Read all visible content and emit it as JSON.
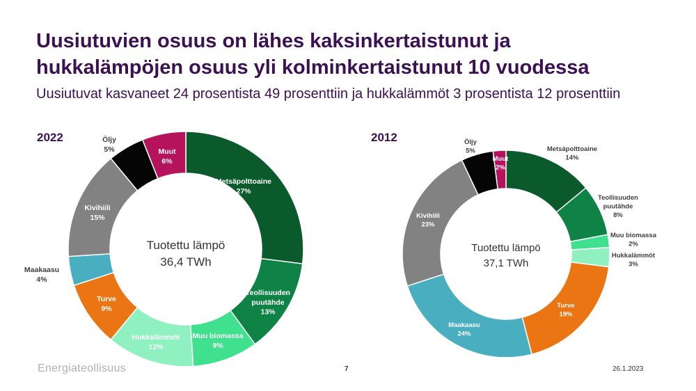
{
  "header": {
    "title_line1": "Uusiutuvien osuus on lähes kaksinkertaistunut ja",
    "title_line2": "hukkalämpöjen osuus yli kolminkertaistunut 10 vuodessa",
    "subtitle": "Uusiutuvat kasvaneet 24 prosentista 49 prosenttiin ja hukkalämmöt 3 prosentista 12 prosenttiin"
  },
  "chart_data": [
    {
      "type": "pie",
      "year_label": "2022",
      "center_line1": "Tuotettu lämpö",
      "center_line2": "36,4 TWh",
      "slices": [
        {
          "name": "Metsäpolttoaine",
          "value": 27,
          "label": "27%",
          "color": "#0b5a2c"
        },
        {
          "name": "Teollisuuden puutähde",
          "value": 13,
          "label": "13%",
          "color": "#0f8345"
        },
        {
          "name": "Muu biomassa",
          "value": 9,
          "label": "9%",
          "color": "#3fe08e"
        },
        {
          "name": "Hukkalämmöt",
          "value": 12,
          "label": "12%",
          "color": "#8ff0c0"
        },
        {
          "name": "Turve",
          "value": 9,
          "label": "9%",
          "color": "#ea7512"
        },
        {
          "name": "Maakaasu",
          "value": 4,
          "label": "4%",
          "color": "#4aaec1"
        },
        {
          "name": "Kivihiili",
          "value": 15,
          "label": "15%",
          "color": "#828282"
        },
        {
          "name": "Öljy",
          "value": 5,
          "label": "5%",
          "color": "#050505"
        },
        {
          "name": "Muut",
          "value": 6,
          "label": "6%",
          "color": "#b5145c"
        }
      ]
    },
    {
      "type": "pie",
      "year_label": "2012",
      "center_line1": "Tuotettu lämpö",
      "center_line2": "37,1 TWh",
      "slices": [
        {
          "name": "Metsäpolttoaine",
          "value": 14,
          "label": "14%",
          "color": "#0b5a2c"
        },
        {
          "name": "Teollisuuden puutähde",
          "value": 8,
          "label": "8%",
          "color": "#0f8345"
        },
        {
          "name": "Muu biomassa",
          "value": 2,
          "label": "2%",
          "color": "#3fe08e"
        },
        {
          "name": "Hukkalämmöt",
          "value": 3,
          "label": "3%",
          "color": "#8ff0c0"
        },
        {
          "name": "Turve",
          "value": 19,
          "label": "19%",
          "color": "#ea7512"
        },
        {
          "name": "Maakaasu",
          "value": 24,
          "label": "24%",
          "color": "#4aaec1"
        },
        {
          "name": "Kivihiili",
          "value": 23,
          "label": "23%",
          "color": "#828282"
        },
        {
          "name": "Öljy",
          "value": 5,
          "label": "5%",
          "color": "#050505"
        },
        {
          "name": "Muut",
          "value": 2,
          "label": "2%",
          "color": "#b5145c"
        }
      ]
    }
  ],
  "footer": {
    "logo_text": "Energiateollisuus",
    "page_number": "7",
    "date": "26.1.2023"
  }
}
